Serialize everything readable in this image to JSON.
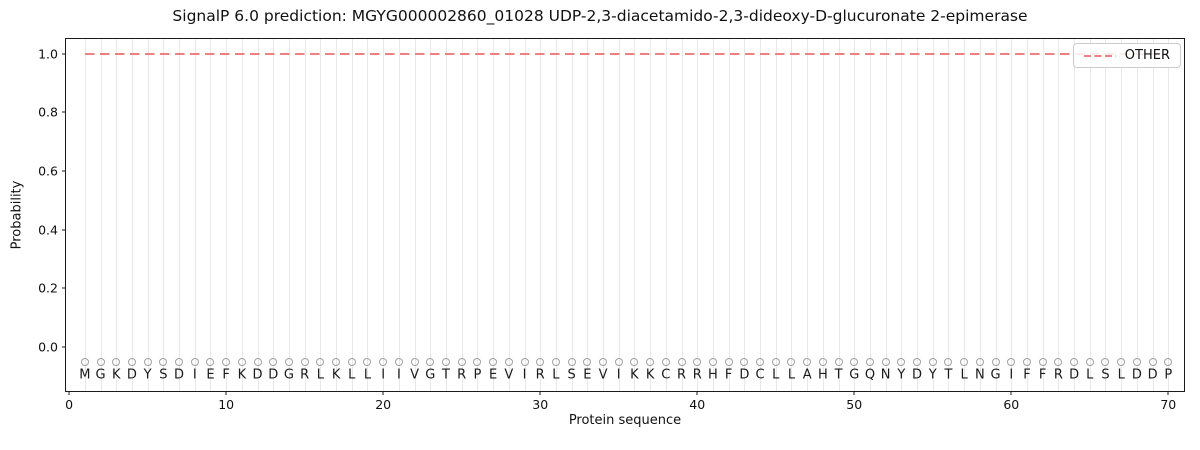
{
  "chart_data": {
    "type": "line",
    "title": "SignalP 6.0 prediction: MGYG000002860_01028 UDP-2,3-diacetamido-2,3-dideoxy-D-glucuronate 2-epimerase",
    "xlabel": "Protein sequence",
    "ylabel": "Probability",
    "xlim": [
      -0.2,
      71.0
    ],
    "ylim": [
      -0.15,
      1.05
    ],
    "x_ticks": [
      0,
      10,
      20,
      30,
      40,
      50,
      60,
      70
    ],
    "y_ticks": [
      0.0,
      0.2,
      0.4,
      0.6,
      0.8,
      1.0
    ],
    "grid": "vertical gridline at every sequence position 1-70",
    "series": [
      {
        "name": "OTHER",
        "style": "dashed",
        "color": "#f08080",
        "x_start": 1,
        "x_end": 70,
        "constant_value": 1.0,
        "note": "constant probability 1.0 across all 70 positions"
      }
    ],
    "sequence": "MGKDYSDIEFKDDGRLKLLIIVGTRPEVIRLSEVIKKCRRHFDCLLAHTGQNYDYTLNGIFFRDLSLDDP",
    "sequence_length": 70,
    "marker_row": {
      "symbol": "open-circle",
      "y": -0.05,
      "color": "#a0a0a0"
    },
    "letter_row_y": -0.095,
    "legend": {
      "position": "upper right",
      "entries": [
        {
          "label": "OTHER",
          "color": "#f08080",
          "style": "dashed"
        }
      ]
    }
  },
  "colors": {
    "line_other": "#f08080",
    "marker_gray": "#a0a0a0",
    "gridline": "#e8e8e8",
    "spine": "#1a1a1a",
    "background": "#ffffff"
  }
}
